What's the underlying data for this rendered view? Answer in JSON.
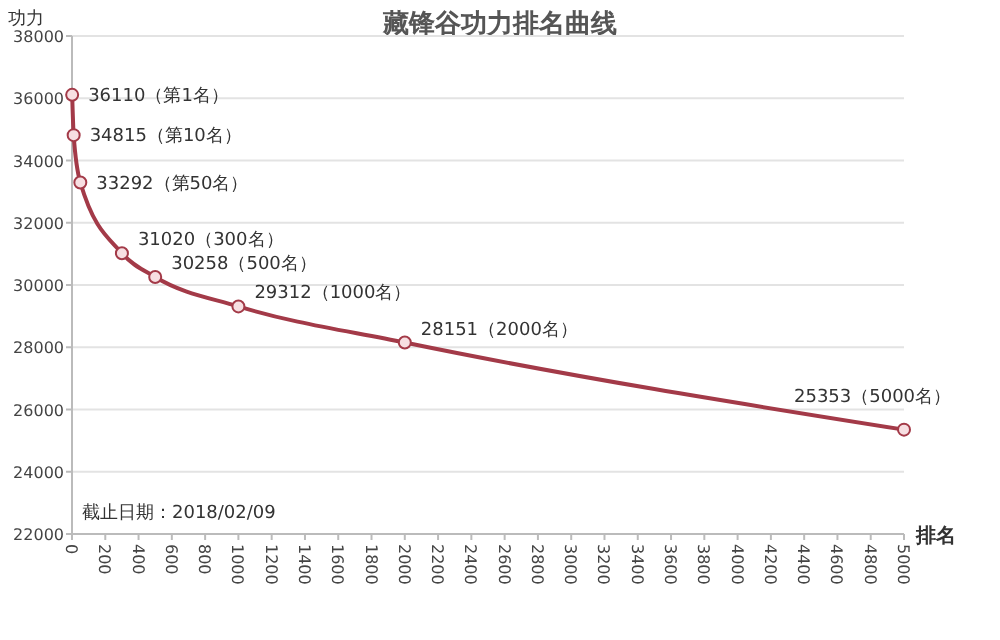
{
  "chart_data": {
    "type": "line",
    "title": "藏锋谷功力排名曲线",
    "xlabel": "排名",
    "ylabel": "功力",
    "x": [
      1,
      10,
      50,
      300,
      500,
      1000,
      2000,
      5000
    ],
    "series": [
      {
        "color": "#a33a48",
        "values": [
          36110,
          34815,
          33292,
          31020,
          30258,
          29312,
          28151,
          25353
        ],
        "value_labels": [
          "36110（第1名）",
          "34815（第10名）",
          "33292（第50名）",
          "31020（300名）",
          "30258（500名）",
          "29312（1000名）",
          "28151（2000名）",
          "25353（5000名）"
        ]
      }
    ],
    "xlim": [
      0,
      5000
    ],
    "xticks": [
      0,
      200,
      400,
      600,
      800,
      1000,
      1200,
      1400,
      1600,
      1800,
      2000,
      2200,
      2400,
      2600,
      2800,
      3000,
      3200,
      3400,
      3600,
      3800,
      4000,
      4200,
      4400,
      4600,
      4800,
      5000
    ],
    "ylim": [
      22000,
      38000
    ],
    "yticks": [
      22000,
      24000,
      26000,
      28000,
      30000,
      32000,
      34000,
      36000,
      38000
    ],
    "grid": "y",
    "marker": "circle",
    "line_style": "solid",
    "annotations": [
      "截止日期：2018/02/09"
    ]
  }
}
